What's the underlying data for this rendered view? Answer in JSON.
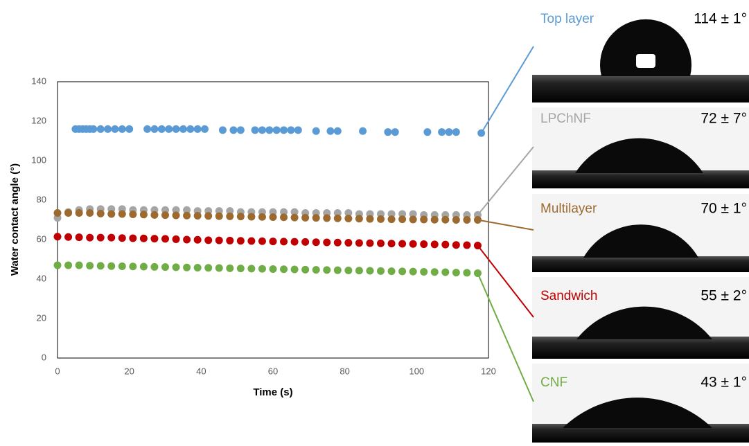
{
  "chart_data": {
    "type": "scatter",
    "xlabel": "Time (s)",
    "ylabel": "Water contact angle (°)",
    "xlim": [
      0,
      120
    ],
    "xticks": [
      0,
      20,
      40,
      60,
      80,
      100,
      120
    ],
    "ylim": [
      0,
      140
    ],
    "yticks": [
      0,
      20,
      40,
      60,
      80,
      100,
      120,
      140
    ],
    "series": [
      {
        "name": "Top layer",
        "color": "#5b9bd5",
        "x": [
          5,
          6,
          7,
          8,
          9,
          10,
          12,
          14,
          16,
          18,
          20,
          25,
          27,
          29,
          31,
          33,
          35,
          37,
          39,
          41,
          46,
          49,
          51,
          55,
          57,
          59,
          61,
          63,
          65,
          67,
          72,
          76,
          78,
          85,
          92,
          94,
          103,
          107,
          109,
          111,
          118
        ],
        "values": [
          116,
          116,
          116,
          116,
          116,
          116,
          116,
          116,
          116,
          116,
          116,
          116,
          116,
          116,
          116,
          116,
          116,
          116,
          116,
          116,
          115.5,
          115.5,
          115.5,
          115.5,
          115.5,
          115.5,
          115.5,
          115.5,
          115.5,
          115.5,
          115,
          115,
          115,
          115,
          114.5,
          114.5,
          114.5,
          114.5,
          114.5,
          114.5,
          114
        ]
      },
      {
        "name": "LPChNF",
        "color": "#a5a5a5",
        "x": [
          0,
          3,
          6,
          9,
          12,
          15,
          18,
          21,
          24,
          27,
          30,
          33,
          36,
          39,
          42,
          45,
          48,
          51,
          54,
          57,
          60,
          63,
          66,
          69,
          72,
          75,
          78,
          81,
          84,
          87,
          90,
          93,
          96,
          99,
          102,
          105,
          108,
          111,
          114,
          117
        ],
        "values": [
          71,
          74,
          75,
          75.5,
          75.5,
          75.5,
          75.5,
          75,
          75,
          75,
          75,
          75,
          75,
          74.5,
          74.5,
          74.5,
          74.5,
          74,
          74,
          74,
          74,
          74,
          74,
          73.5,
          73.5,
          73.5,
          73.5,
          73.5,
          73,
          73,
          73,
          73,
          73,
          73,
          72.5,
          72.5,
          72.5,
          72.5,
          72.5,
          72.5
        ]
      },
      {
        "name": "Multilayer",
        "color": "#9c6a2e",
        "x": [
          0,
          3,
          6,
          9,
          12,
          15,
          18,
          21,
          24,
          27,
          30,
          33,
          36,
          39,
          42,
          45,
          48,
          51,
          54,
          57,
          60,
          63,
          66,
          69,
          72,
          75,
          78,
          81,
          84,
          87,
          90,
          93,
          96,
          99,
          102,
          105,
          108,
          111,
          114,
          117
        ],
        "values": [
          73.5,
          73.5,
          73.5,
          73.5,
          73.2,
          73,
          73,
          72.8,
          72.7,
          72.5,
          72.4,
          72.3,
          72.2,
          72.1,
          72,
          71.9,
          71.8,
          71.7,
          71.6,
          71.5,
          71.4,
          71.3,
          71.2,
          71.1,
          71,
          70.9,
          70.8,
          70.7,
          70.6,
          70.5,
          70.4,
          70.3,
          70.3,
          70.2,
          70.2,
          70.1,
          70.1,
          70,
          70,
          70
        ]
      },
      {
        "name": "Sandwich",
        "color": "#c00000",
        "x": [
          0,
          3,
          6,
          9,
          12,
          15,
          18,
          21,
          24,
          27,
          30,
          33,
          36,
          39,
          42,
          45,
          48,
          51,
          54,
          57,
          60,
          63,
          66,
          69,
          72,
          75,
          78,
          81,
          84,
          87,
          90,
          93,
          96,
          99,
          102,
          105,
          108,
          111,
          114,
          117
        ],
        "values": [
          61.5,
          61.3,
          61.2,
          61,
          61,
          61,
          60.8,
          60.7,
          60.6,
          60.5,
          60.4,
          60.2,
          60,
          59.9,
          59.7,
          59.6,
          59.5,
          59.4,
          59.3,
          59.2,
          59.1,
          59,
          58.9,
          58.8,
          58.7,
          58.6,
          58.5,
          58.4,
          58.3,
          58.2,
          58.1,
          58,
          57.9,
          57.8,
          57.7,
          57.6,
          57.5,
          57.3,
          57.2,
          57
        ]
      },
      {
        "name": "CNF",
        "color": "#70ad47",
        "x": [
          0,
          3,
          6,
          9,
          12,
          15,
          18,
          21,
          24,
          27,
          30,
          33,
          36,
          39,
          42,
          45,
          48,
          51,
          54,
          57,
          60,
          63,
          66,
          69,
          72,
          75,
          78,
          81,
          84,
          87,
          90,
          93,
          96,
          99,
          102,
          105,
          108,
          111,
          114,
          117
        ],
        "values": [
          47,
          47,
          47,
          46.8,
          46.7,
          46.6,
          46.5,
          46.4,
          46.3,
          46.2,
          46.1,
          46,
          45.9,
          45.8,
          45.7,
          45.6,
          45.5,
          45.4,
          45.3,
          45.2,
          45.1,
          45,
          44.9,
          44.8,
          44.7,
          44.6,
          44.5,
          44.4,
          44.3,
          44.2,
          44.1,
          44,
          43.9,
          43.8,
          43.7,
          43.6,
          43.5,
          43.3,
          43.2,
          43
        ]
      }
    ],
    "droplets": [
      {
        "label": "Top layer",
        "angle": "114 ± 1°"
      },
      {
        "label": "LPChNF",
        "angle": "72 ± 7°"
      },
      {
        "label": "Multilayer",
        "angle": "70 ± 1°"
      },
      {
        "label": "Sandwich",
        "angle": "55 ± 2°"
      },
      {
        "label": "CNF",
        "angle": "43 ± 1°"
      }
    ]
  }
}
